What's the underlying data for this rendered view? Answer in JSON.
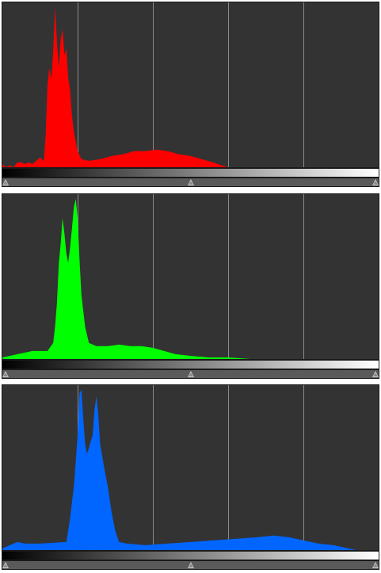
{
  "histograms": [
    {
      "channel": "red",
      "color": "#ff0000",
      "levels": {
        "black_point": 0,
        "midtone": 0.5,
        "white_point": 1
      },
      "shape": [
        [
          0.0,
          0.02
        ],
        [
          0.01,
          0.0
        ],
        [
          0.02,
          0.01
        ],
        [
          0.03,
          0.0
        ],
        [
          0.04,
          0.03
        ],
        [
          0.05,
          0.03
        ],
        [
          0.06,
          0.02
        ],
        [
          0.07,
          0.03
        ],
        [
          0.08,
          0.02
        ],
        [
          0.09,
          0.04
        ],
        [
          0.1,
          0.06
        ],
        [
          0.11,
          0.04
        ],
        [
          0.115,
          0.2
        ],
        [
          0.12,
          0.52
        ],
        [
          0.125,
          0.62
        ],
        [
          0.13,
          0.55
        ],
        [
          0.135,
          0.72
        ],
        [
          0.14,
          1.0
        ],
        [
          0.145,
          0.78
        ],
        [
          0.15,
          0.62
        ],
        [
          0.155,
          0.8
        ],
        [
          0.16,
          0.86
        ],
        [
          0.165,
          0.7
        ],
        [
          0.17,
          0.74
        ],
        [
          0.175,
          0.56
        ],
        [
          0.18,
          0.48
        ],
        [
          0.185,
          0.32
        ],
        [
          0.19,
          0.22
        ],
        [
          0.2,
          0.1
        ],
        [
          0.21,
          0.05
        ],
        [
          0.23,
          0.04
        ],
        [
          0.26,
          0.05
        ],
        [
          0.29,
          0.07
        ],
        [
          0.32,
          0.08
        ],
        [
          0.35,
          0.1
        ],
        [
          0.38,
          0.1
        ],
        [
          0.41,
          0.11
        ],
        [
          0.44,
          0.1
        ],
        [
          0.47,
          0.08
        ],
        [
          0.5,
          0.07
        ],
        [
          0.53,
          0.05
        ],
        [
          0.56,
          0.03
        ],
        [
          0.585,
          0.01
        ],
        [
          0.6,
          0.0
        ],
        [
          1.0,
          0.0
        ]
      ]
    },
    {
      "channel": "green",
      "color": "#00ff00",
      "levels": {
        "black_point": 0,
        "midtone": 0.5,
        "white_point": 1
      },
      "shape": [
        [
          0.0,
          0.01
        ],
        [
          0.02,
          0.02
        ],
        [
          0.04,
          0.03
        ],
        [
          0.06,
          0.04
        ],
        [
          0.08,
          0.05
        ],
        [
          0.1,
          0.05
        ],
        [
          0.12,
          0.05
        ],
        [
          0.135,
          0.1
        ],
        [
          0.14,
          0.2
        ],
        [
          0.145,
          0.35
        ],
        [
          0.15,
          0.6
        ],
        [
          0.155,
          0.72
        ],
        [
          0.16,
          0.88
        ],
        [
          0.165,
          0.78
        ],
        [
          0.17,
          0.66
        ],
        [
          0.175,
          0.6
        ],
        [
          0.18,
          0.7
        ],
        [
          0.185,
          0.82
        ],
        [
          0.19,
          0.95
        ],
        [
          0.195,
          1.0
        ],
        [
          0.2,
          0.88
        ],
        [
          0.205,
          0.62
        ],
        [
          0.21,
          0.4
        ],
        [
          0.22,
          0.2
        ],
        [
          0.23,
          0.1
        ],
        [
          0.25,
          0.08
        ],
        [
          0.28,
          0.08
        ],
        [
          0.31,
          0.09
        ],
        [
          0.34,
          0.08
        ],
        [
          0.37,
          0.08
        ],
        [
          0.4,
          0.07
        ],
        [
          0.43,
          0.05
        ],
        [
          0.46,
          0.03
        ],
        [
          0.5,
          0.02
        ],
        [
          0.55,
          0.01
        ],
        [
          0.6,
          0.01
        ],
        [
          0.66,
          0.0
        ],
        [
          1.0,
          0.0
        ]
      ]
    },
    {
      "channel": "blue",
      "color": "#0066ff",
      "levels": {
        "black_point": 0,
        "midtone": 0.5,
        "white_point": 1
      },
      "shape": [
        [
          0.0,
          0.01
        ],
        [
          0.02,
          0.03
        ],
        [
          0.04,
          0.05
        ],
        [
          0.06,
          0.04
        ],
        [
          0.08,
          0.04
        ],
        [
          0.1,
          0.04
        ],
        [
          0.17,
          0.05
        ],
        [
          0.18,
          0.2
        ],
        [
          0.19,
          0.4
        ],
        [
          0.195,
          0.55
        ],
        [
          0.2,
          0.72
        ],
        [
          0.205,
          0.98
        ],
        [
          0.21,
          1.0
        ],
        [
          0.215,
          0.82
        ],
        [
          0.22,
          0.66
        ],
        [
          0.225,
          0.6
        ],
        [
          0.23,
          0.64
        ],
        [
          0.24,
          0.72
        ],
        [
          0.245,
          0.88
        ],
        [
          0.25,
          0.96
        ],
        [
          0.255,
          0.84
        ],
        [
          0.26,
          0.66
        ],
        [
          0.27,
          0.52
        ],
        [
          0.28,
          0.4
        ],
        [
          0.29,
          0.24
        ],
        [
          0.3,
          0.12
        ],
        [
          0.31,
          0.05
        ],
        [
          0.33,
          0.04
        ],
        [
          0.38,
          0.03
        ],
        [
          0.44,
          0.04
        ],
        [
          0.5,
          0.05
        ],
        [
          0.56,
          0.06
        ],
        [
          0.62,
          0.07
        ],
        [
          0.68,
          0.08
        ],
        [
          0.72,
          0.09
        ],
        [
          0.76,
          0.08
        ],
        [
          0.8,
          0.06
        ],
        [
          0.84,
          0.04
        ],
        [
          0.88,
          0.03
        ],
        [
          0.92,
          0.01
        ],
        [
          0.94,
          0.0
        ],
        [
          1.0,
          0.0
        ]
      ]
    }
  ]
}
